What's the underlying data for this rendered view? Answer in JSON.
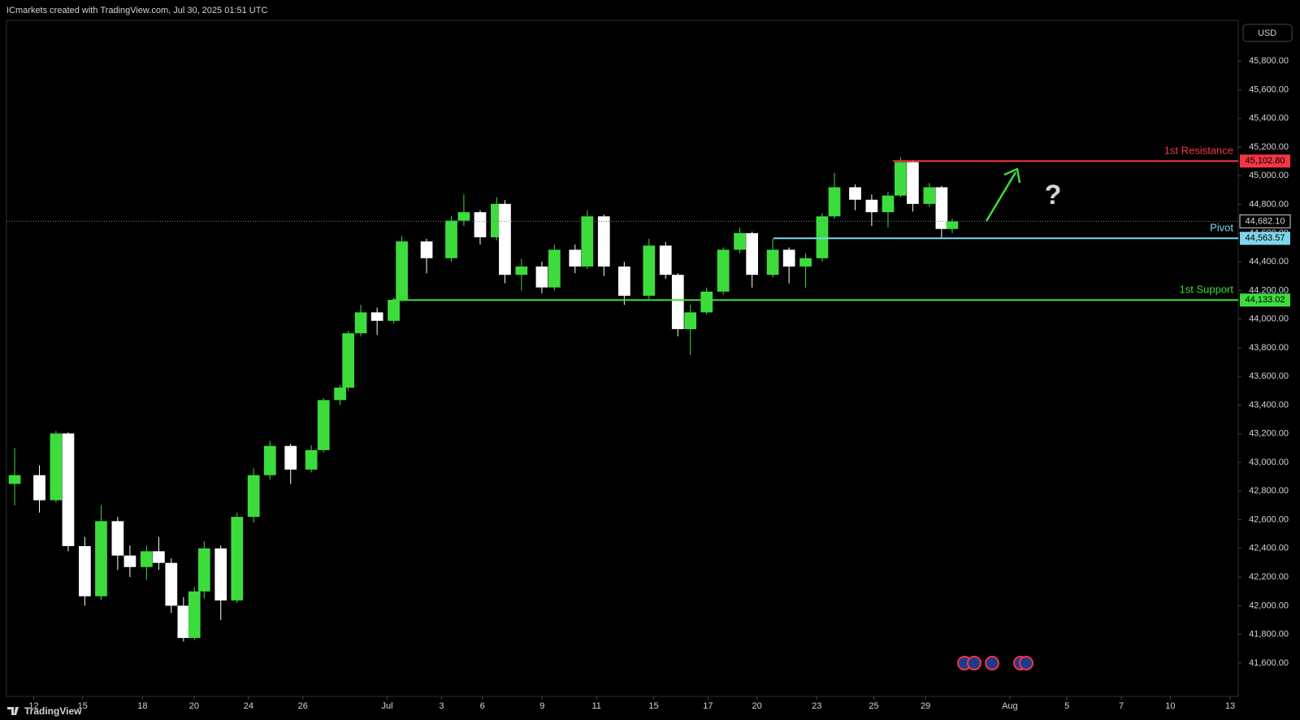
{
  "header": "ICmarkets created with TradingView.com, Jul 30, 2025 01:51 UTC",
  "currency": "USD",
  "footer": "TradingView",
  "chart_data": {
    "type": "candlestick",
    "up_color": "#3ddc3d",
    "down_color": "#ffffff",
    "xlim": [
      -0.3,
      45
    ],
    "ylim": [
      41367,
      46085
    ],
    "xticks": [
      {
        "value": 0.7,
        "label": "12"
      },
      {
        "value": 2.5,
        "label": "15"
      },
      {
        "value": 4.7,
        "label": "18"
      },
      {
        "value": 6.6,
        "label": "20"
      },
      {
        "value": 8.6,
        "label": "24"
      },
      {
        "value": 10.6,
        "label": "26"
      },
      {
        "value": 13.7,
        "label": "Jul"
      },
      {
        "value": 15.7,
        "label": "3"
      },
      {
        "value": 17.2,
        "label": "6"
      },
      {
        "value": 19.4,
        "label": "9"
      },
      {
        "value": 21.4,
        "label": "11"
      },
      {
        "value": 23.5,
        "label": "15"
      },
      {
        "value": 25.5,
        "label": "17"
      },
      {
        "value": 27.3,
        "label": "20"
      },
      {
        "value": 29.5,
        "label": "23"
      },
      {
        "value": 31.6,
        "label": "25"
      },
      {
        "value": 33.5,
        "label": "29"
      },
      {
        "value": 36.6,
        "label": "Aug"
      },
      {
        "value": 38.7,
        "label": "5"
      },
      {
        "value": 40.7,
        "label": "7"
      },
      {
        "value": 42.5,
        "label": "10"
      },
      {
        "value": 44.7,
        "label": "13"
      }
    ],
    "yticks": [
      {
        "value": 41600,
        "label": "41,600.00"
      },
      {
        "value": 41800,
        "label": "41,800.00"
      },
      {
        "value": 42000,
        "label": "42,000.00"
      },
      {
        "value": 42200,
        "label": "42,200.00"
      },
      {
        "value": 42400,
        "label": "42,400.00"
      },
      {
        "value": 42600,
        "label": "42,600.00"
      },
      {
        "value": 42800,
        "label": "42,800.00"
      },
      {
        "value": 43000,
        "label": "43,000.00"
      },
      {
        "value": 43200,
        "label": "43,200.00"
      },
      {
        "value": 43400,
        "label": "43,400.00"
      },
      {
        "value": 43600,
        "label": "43,600.00"
      },
      {
        "value": 43800,
        "label": "43,800.00"
      },
      {
        "value": 44000,
        "label": "44,000.00"
      },
      {
        "value": 44200,
        "label": "44,200.00"
      },
      {
        "value": 44400,
        "label": "44,400.00"
      },
      {
        "value": 44600,
        "label": "44,600.00"
      },
      {
        "value": 44800,
        "label": "44,800.00"
      },
      {
        "value": 45000,
        "label": "45,000.00"
      },
      {
        "value": 45200,
        "label": "45,200.00"
      },
      {
        "value": 45400,
        "label": "45,400.00"
      },
      {
        "value": 45600,
        "label": "45,600.00"
      },
      {
        "value": 45800,
        "label": "45,800.00"
      }
    ],
    "x": [
      0,
      0.91,
      1.52,
      1.97,
      2.58,
      3.18,
      3.79,
      4.24,
      4.85,
      5.3,
      5.76,
      6.21,
      6.61,
      6.97,
      7.58,
      8.18,
      8.79,
      9.39,
      10.15,
      10.91,
      11.36,
      11.97,
      12.27,
      12.73,
      13.33,
      13.94,
      14.24,
      15.15,
      16.06,
      16.52,
      17.12,
      17.73,
      18.03,
      18.64,
      19.39,
      19.85,
      20.61,
      21.06,
      21.67,
      22.42,
      23.33,
      23.94,
      24.39,
      24.85,
      25.45,
      26.06,
      26.67,
      27.12,
      27.88,
      28.48,
      29.09,
      29.7,
      30.15,
      30.91,
      31.52,
      32.12,
      32.58,
      33.03,
      33.64,
      34.09,
      34.48
    ],
    "open": [
      42850,
      42911,
      42736,
      43202,
      42416,
      42066,
      42590,
      42350,
      42270,
      42380,
      42299,
      42000,
      41775,
      42100,
      42400,
      42037,
      42620,
      42911,
      43115,
      42950,
      43086,
      43435,
      43522,
      43901,
      44047,
      43988,
      44134,
      44542,
      44425,
      44687,
      44746,
      44571,
      44804,
      44309,
      44367,
      44221,
      44484,
      44367,
      44717,
      44367,
      44163,
      44513,
      44309,
      43930,
      44047,
      44192,
      44484,
      44600,
      44309,
      44484,
      44367,
      44425,
      44717,
      44920,
      44833,
      44746,
      44862,
      45095,
      44804,
      44920,
      44629
    ],
    "high": [
      43100,
      42980,
      43220,
      43210,
      42480,
      42700,
      42620,
      42420,
      42420,
      42480,
      42330,
      42060,
      42130,
      42450,
      42420,
      42650,
      42960,
      43150,
      43130,
      43120,
      43450,
      43540,
      43920,
      44100,
      44080,
      44150,
      44580,
      44560,
      44720,
      44870,
      44760,
      44850,
      44830,
      44420,
      44400,
      44520,
      44520,
      44760,
      44730,
      44400,
      44560,
      44540,
      44320,
      44100,
      44220,
      44500,
      44640,
      44610,
      44560,
      44500,
      44460,
      44740,
      45020,
      44940,
      44870,
      44890,
      45130,
      45110,
      44950,
      44930,
      44700
    ],
    "low": [
      42700,
      42650,
      42720,
      42380,
      42000,
      42040,
      42250,
      42200,
      42180,
      42250,
      41950,
      41750,
      41760,
      42050,
      41900,
      42020,
      42580,
      42880,
      42850,
      42930,
      43070,
      43400,
      43500,
      43880,
      43890,
      43970,
      44120,
      44320,
      44400,
      44650,
      44520,
      44550,
      44250,
      44200,
      44180,
      44200,
      44320,
      44350,
      44300,
      44100,
      44140,
      44280,
      43880,
      43750,
      44030,
      44170,
      44460,
      44220,
      44290,
      44250,
      44220,
      44400,
      44700,
      44760,
      44650,
      44640,
      44850,
      44750,
      44780,
      44560,
      44600
    ],
    "close": [
      42911,
      42736,
      43202,
      42416,
      42066,
      42590,
      42350,
      42270,
      42380,
      42299,
      42000,
      41775,
      42100,
      42400,
      42037,
      42620,
      42911,
      43115,
      42950,
      43086,
      43435,
      43522,
      43901,
      44047,
      43988,
      44134,
      44542,
      44425,
      44687,
      44746,
      44571,
      44804,
      44309,
      44367,
      44221,
      44484,
      44367,
      44717,
      44367,
      44163,
      44513,
      44309,
      43930,
      44047,
      44192,
      44484,
      44600,
      44309,
      44484,
      44367,
      44425,
      44717,
      44920,
      44833,
      44746,
      44862,
      45095,
      44804,
      44920,
      44629,
      44682
    ],
    "last_price": {
      "value": 44682.1,
      "label": "44,682.10"
    },
    "levels": [
      {
        "name": "1st Resistance",
        "value": 45102.8,
        "label": "45,102.80",
        "color": "#f23645",
        "from_x": 32.3
      },
      {
        "name": "Pivot",
        "value": 44563.57,
        "label": "44,563.57",
        "color": "#7fd6ea",
        "from_x": 27.9
      },
      {
        "name": "1st Support",
        "value": 44133.02,
        "label": "44,133.02",
        "color": "#3ddc3d",
        "from_x": 13.9
      }
    ]
  }
}
